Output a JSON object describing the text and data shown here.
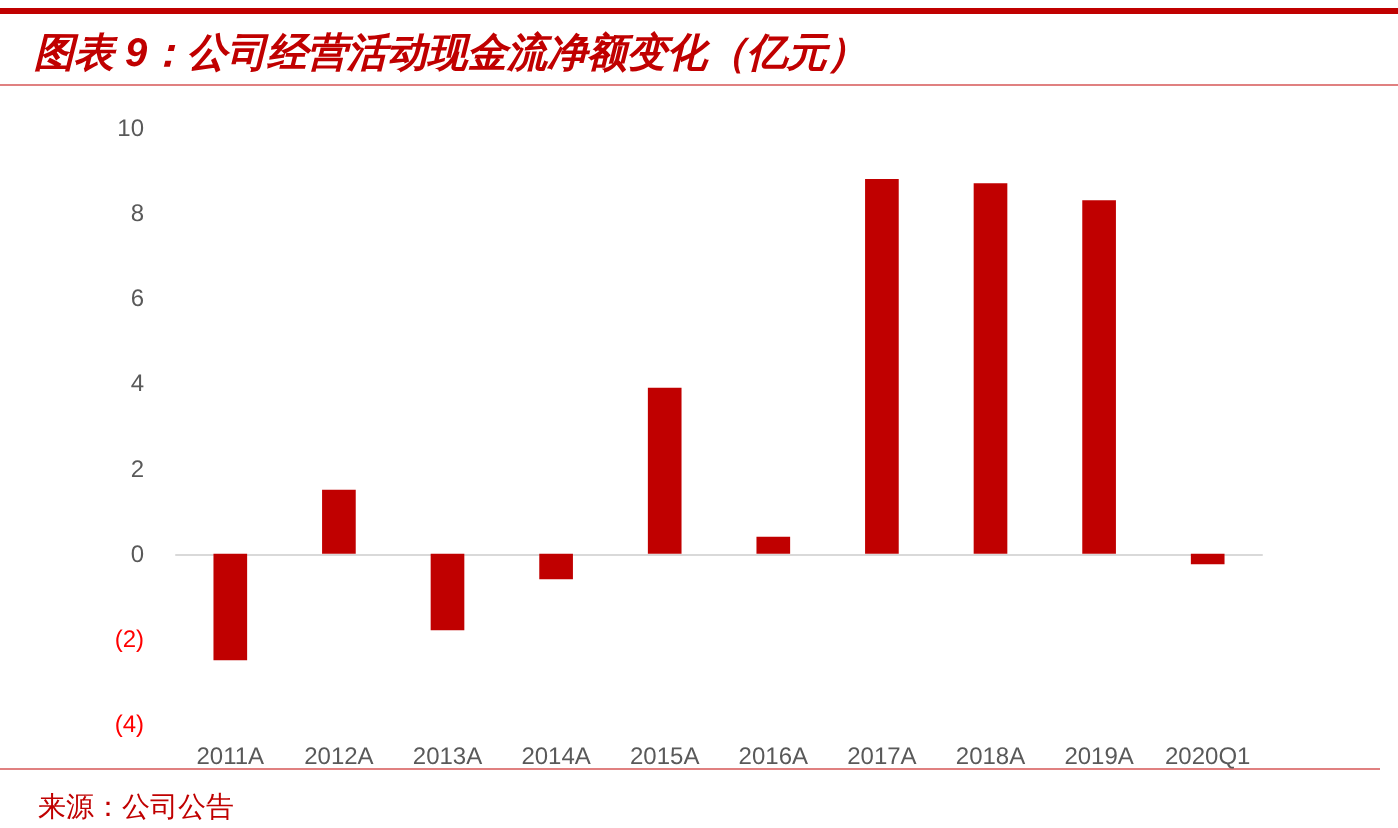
{
  "chart_data": {
    "type": "bar",
    "title": "图表 9：公司经营活动现金流净额变化（亿元）",
    "categories": [
      "2011A",
      "2012A",
      "2013A",
      "2014A",
      "2015A",
      "2016A",
      "2017A",
      "2018A",
      "2019A",
      "2020Q1"
    ],
    "values": [
      -2.5,
      1.5,
      -1.8,
      -0.6,
      3.9,
      0.4,
      8.8,
      8.7,
      8.3,
      -0.25
    ],
    "color": "#c00000",
    "ylim": [
      -4,
      10
    ],
    "yticks": [
      {
        "value": -4,
        "label": "(4)"
      },
      {
        "value": -2,
        "label": "(2)"
      },
      0,
      2,
      4,
      6,
      8,
      10
    ],
    "annotations": [
      "来源：公司公告"
    ]
  }
}
